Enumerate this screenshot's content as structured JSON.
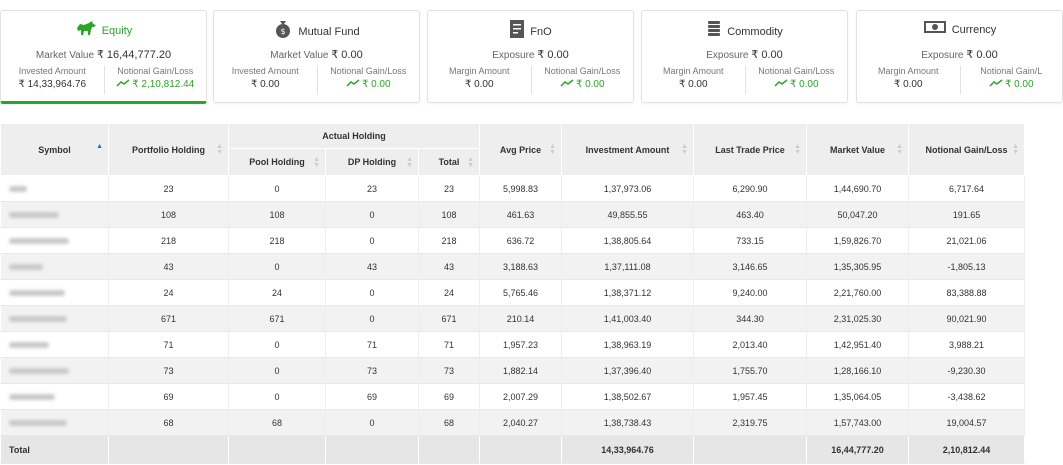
{
  "cards": [
    {
      "name": "Equity",
      "icon": "bull-icon",
      "main_label": "Market Value",
      "main_value": "₹ 16,44,777.20",
      "left_label": "Invested Amount",
      "left_value": "₹ 14,33,964.76",
      "right_label": "Notional Gain/Loss",
      "right_value": "₹ 2,10,812.44"
    },
    {
      "name": "Mutual Fund",
      "icon": "money-bag-icon",
      "main_label": "Market Value",
      "main_value": "₹ 0.00",
      "left_label": "Invested Amount",
      "left_value": "₹ 0.00",
      "right_label": "Notional Gain/Loss",
      "right_value": "₹ 0.00"
    },
    {
      "name": "FnO",
      "icon": "document-icon",
      "main_label": "Exposure",
      "main_value": "₹ 0.00",
      "left_label": "Margin Amount",
      "left_value": "₹ 0.00",
      "right_label": "Notional Gain/Loss",
      "right_value": "₹ 0.00"
    },
    {
      "name": "Commodity",
      "icon": "coin-stack-icon",
      "main_label": "Exposure",
      "main_value": "₹ 0.00",
      "left_label": "Margin Amount",
      "left_value": "₹ 0.00",
      "right_label": "Notional Gain/Loss",
      "right_value": "₹ 0.00"
    },
    {
      "name": "Currency",
      "icon": "banknote-icon",
      "main_label": "Exposure",
      "main_value": "₹ 0.00",
      "left_label": "Margin Amount",
      "left_value": "₹ 0.00",
      "right_label": "Notional Gain/L",
      "right_value": "₹ 0.00"
    }
  ],
  "accent_color": "#2aa52a",
  "table": {
    "headers": {
      "symbol": "Symbol",
      "portfolio_holding": "Portfolio Holding",
      "actual_holding": "Actual Holding",
      "pool_holding": "Pool Holding",
      "dp_holding": "DP Holding",
      "total": "Total",
      "avg_price": "Avg Price",
      "investment_amount": "Investment Amount",
      "ltp": "Last Trade Price",
      "market_value": "Market Value",
      "gain_loss": "Notional Gain/Loss"
    },
    "rows": [
      [
        "23",
        "0",
        "23",
        "23",
        "5,998.83",
        "1,37,973.06",
        "6,290.90",
        "1,44,690.70",
        "6,717.64"
      ],
      [
        "108",
        "108",
        "0",
        "108",
        "461.63",
        "49,855.55",
        "463.40",
        "50,047.20",
        "191.65"
      ],
      [
        "218",
        "218",
        "0",
        "218",
        "636.72",
        "1,38,805.64",
        "733.15",
        "1,59,826.70",
        "21,021.06"
      ],
      [
        "43",
        "0",
        "43",
        "43",
        "3,188.63",
        "1,37,111.08",
        "3,146.65",
        "1,35,305.95",
        "-1,805.13"
      ],
      [
        "24",
        "24",
        "0",
        "24",
        "5,765.46",
        "1,38,371.12",
        "9,240.00",
        "2,21,760.00",
        "83,388.88"
      ],
      [
        "671",
        "671",
        "0",
        "671",
        "210.14",
        "1,41,003.40",
        "344.30",
        "2,31,025.30",
        "90,021.90"
      ],
      [
        "71",
        "0",
        "71",
        "71",
        "1,957.23",
        "1,38,963.19",
        "2,013.40",
        "1,42,951.40",
        "3,988.21"
      ],
      [
        "73",
        "0",
        "73",
        "73",
        "1,882.14",
        "1,37,396.40",
        "1,755.70",
        "1,28,166.10",
        "-9,230.30"
      ],
      [
        "69",
        "0",
        "69",
        "69",
        "2,007.29",
        "1,38,502.67",
        "1,957.45",
        "1,35,064.05",
        "-3,438.62"
      ],
      [
        "68",
        "68",
        "0",
        "68",
        "2,040.27",
        "1,38,738.43",
        "2,319.75",
        "1,57,743.00",
        "19,004.57"
      ]
    ],
    "footer": {
      "label": "Total",
      "investment": "14,33,964.76",
      "market_value": "16,44,777.20",
      "gain_loss": "2,10,812.44"
    }
  }
}
